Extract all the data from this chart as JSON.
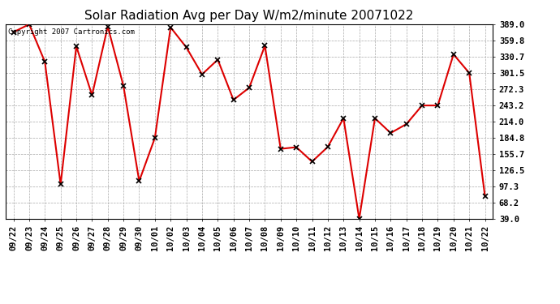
{
  "title": "Solar Radiation Avg per Day W/m2/minute 20071022",
  "copyright_text": "Copyright 2007 Cartronics.com",
  "labels": [
    "09/22",
    "09/23",
    "09/24",
    "09/25",
    "09/26",
    "09/27",
    "09/28",
    "09/29",
    "09/30",
    "10/01",
    "10/02",
    "10/03",
    "10/04",
    "10/05",
    "10/06",
    "10/07",
    "10/08",
    "10/09",
    "10/10",
    "10/11",
    "10/12",
    "10/13",
    "10/14",
    "10/15",
    "10/16",
    "10/17",
    "10/18",
    "10/19",
    "10/20",
    "10/21",
    "10/22"
  ],
  "values": [
    375.0,
    389.0,
    321.5,
    101.0,
    349.5,
    261.5,
    385.0,
    278.0,
    107.0,
    184.8,
    383.5,
    347.5,
    299.0,
    325.5,
    253.0,
    275.0,
    350.5,
    165.0,
    168.0,
    142.0,
    168.5,
    220.0,
    39.0,
    220.0,
    193.5,
    209.5,
    243.0,
    243.0,
    335.0,
    301.5,
    80.0
  ],
  "ylim_min": 39.0,
  "ylim_max": 389.0,
  "yticks": [
    39.0,
    68.2,
    97.3,
    126.5,
    155.7,
    184.8,
    214.0,
    243.2,
    272.3,
    301.5,
    330.7,
    359.8,
    389.0
  ],
  "ytick_labels": [
    "39.0",
    "68.2",
    "97.3",
    "126.5",
    "155.7",
    "184.8",
    "214.0",
    "243.2",
    "272.3",
    "301.5",
    "330.7",
    "359.8",
    "389.0"
  ],
  "line_color": "#dd0000",
  "marker_color": "#000000",
  "bg_color": "#ffffff",
  "grid_color": "#aaaaaa",
  "title_fontsize": 11,
  "tick_fontsize": 7.5,
  "copyright_fontsize": 6.5
}
